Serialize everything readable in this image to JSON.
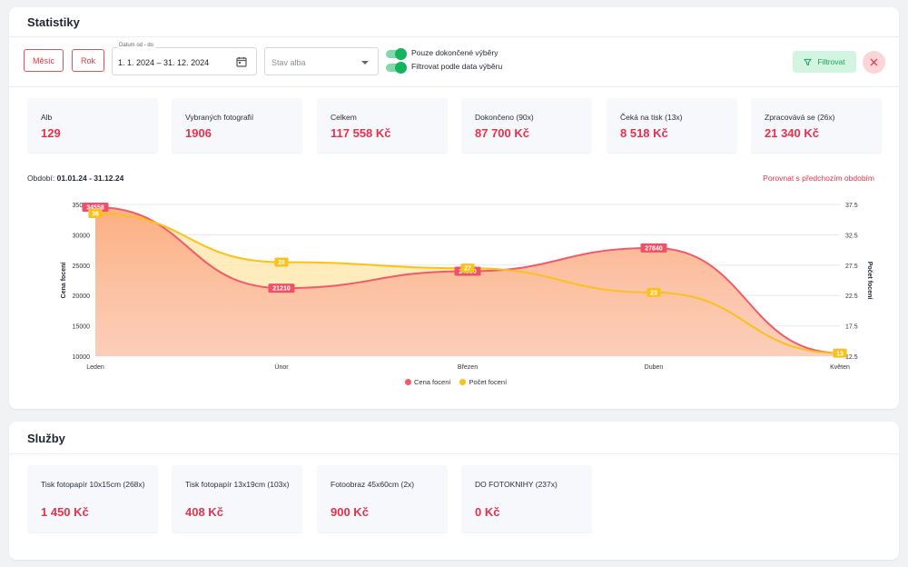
{
  "statistics": {
    "title": "Statistiky",
    "toolbar": {
      "month_btn": "Měsíc",
      "year_btn": "Rok",
      "date_label": "Datum od - do",
      "date_value": "1. 1. 2024 – 31. 12. 2024",
      "status_placeholder": "Stav alba",
      "toggle_completed": "Pouze dokončené výběry",
      "toggle_filter_date": "Filtrovat podle data výběru",
      "filter_btn": "Filtrovat"
    },
    "tiles": [
      {
        "label": "Alb",
        "value": "129"
      },
      {
        "label": "Vybraných fotografií",
        "value": "1906"
      },
      {
        "label": "Celkem",
        "value": "117 558 Kč"
      },
      {
        "label": "Dokončeno (90x)",
        "value": "87 700 Kč"
      },
      {
        "label": "Čeká na tisk (13x)",
        "value": "8 518 Kč"
      },
      {
        "label": "Zpracovává se (26x)",
        "value": "21 340 Kč"
      }
    ],
    "period_label": "Období:",
    "period_value": "01.01.24 - 31.12.24",
    "compare_link": "Porovnat s předchozím obdobím",
    "colors": {
      "accent": "#e9304a",
      "price_line": "#f05a6a",
      "count_line": "#fbc11b",
      "green": "#14b45c"
    }
  },
  "chart_data": {
    "type": "area",
    "categories": [
      "Leden",
      "Únor",
      "Březen",
      "Duben",
      "Květen"
    ],
    "series": [
      {
        "name": "Cena focení",
        "axis": "left",
        "values": [
          34558,
          21210,
          24000,
          27840,
          10500
        ],
        "labels": [
          "34558",
          "21210",
          "24000",
          "27840",
          ""
        ]
      },
      {
        "name": "Počet focení",
        "axis": "right",
        "values": [
          36,
          28,
          27,
          23,
          13
        ],
        "labels": [
          "36",
          "28",
          "27",
          "23",
          "13"
        ]
      }
    ],
    "ylabel": "Cena focení",
    "y2label": "Počet focení",
    "ylim": [
      10000,
      35000
    ],
    "yticks": [
      "10000",
      "15000",
      "20000",
      "25000",
      "30000",
      "35000"
    ],
    "y2lim": [
      12.5,
      37.5
    ],
    "y2ticks": [
      "12.5",
      "17.5",
      "22.5",
      "27.5",
      "32.5",
      "37.5"
    ],
    "grid": true,
    "legend": "bottom"
  },
  "services": {
    "title": "Služby",
    "tiles": [
      {
        "label": "Tisk fotopapír 10x15cm (268x)",
        "value": "1 450 Kč"
      },
      {
        "label": "Tisk fotopapír 13x19cm (103x)",
        "value": "408 Kč"
      },
      {
        "label": "Fotoobraz 45x60cm (2x)",
        "value": "900 Kč"
      },
      {
        "label": "DO FOTOKNIHY (237x)",
        "value": "0 Kč"
      }
    ]
  }
}
